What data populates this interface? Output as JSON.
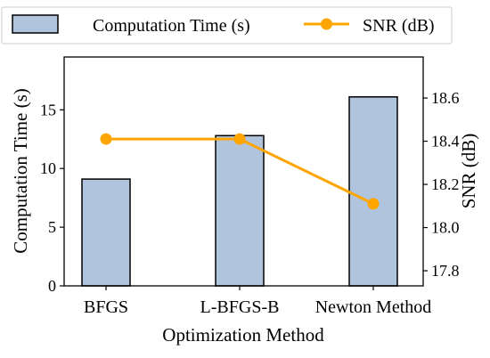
{
  "chart_data": {
    "type": "bar",
    "title": "",
    "xlabel": "Optimization Method",
    "ylabel_left": "Computation Time (s)",
    "ylabel_right": "SNR (dB)",
    "categories": [
      "BFGS",
      "L-BFGS-B",
      "Newton Method"
    ],
    "series": [
      {
        "name": "Computation Time (s)",
        "type": "bar",
        "axis": "left",
        "color": "#b0c4de",
        "edge_color": "#000000",
        "values": [
          9.1,
          12.8,
          16.1
        ]
      },
      {
        "name": "SNR (dB)",
        "type": "line",
        "axis": "right",
        "color": "#ffa500",
        "marker": "circle",
        "values": [
          18.41,
          18.41,
          18.11
        ]
      }
    ],
    "ylim_left": [
      0,
      19.5
    ],
    "yticks_left": [
      "0",
      "5",
      "10",
      "15"
    ],
    "ylim_right": [
      17.73,
      18.79
    ],
    "yticks_right": [
      "17.8",
      "18.0",
      "18.2",
      "18.4",
      "18.6"
    ],
    "grid": false,
    "legend_placement": "top, outside plot area, single row"
  }
}
